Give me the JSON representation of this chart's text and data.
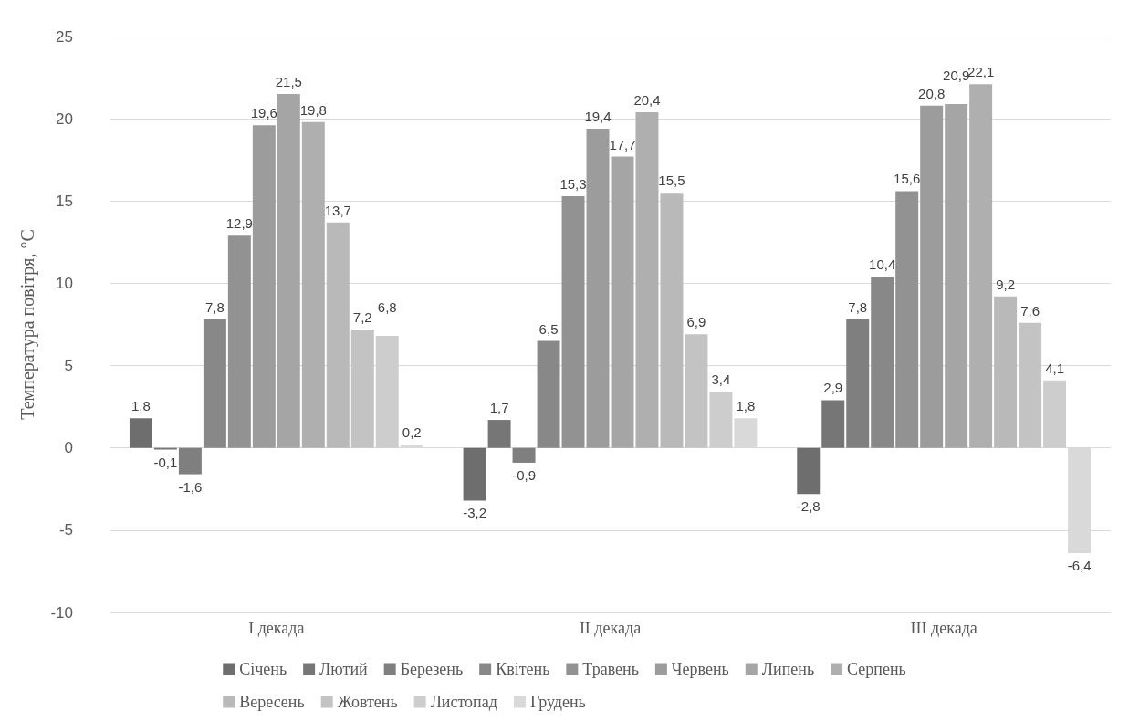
{
  "chart_data": {
    "type": "bar",
    "ylabel": "Температура повітря, °C",
    "categories": [
      "I декада",
      "II декада",
      "III декада"
    ],
    "series": [
      {
        "name": "Січень",
        "color": "#6e6e6e",
        "values": [
          1.8,
          -3.2,
          -2.8
        ],
        "value_labels": [
          "1,8",
          "-3,2",
          "-2,8"
        ]
      },
      {
        "name": "Лютий",
        "color": "#767676",
        "values": [
          -0.1,
          1.7,
          2.9
        ],
        "value_labels": [
          "-0,1",
          "1,7",
          "2,9"
        ]
      },
      {
        "name": "Березень",
        "color": "#7f7f7f",
        "values": [
          -1.6,
          -0.9,
          7.8
        ],
        "value_labels": [
          "-1,6",
          "-0,9",
          "7,8"
        ]
      },
      {
        "name": "Квітень",
        "color": "#888888",
        "values": [
          7.8,
          6.5,
          10.4
        ],
        "value_labels": [
          "7,8",
          "6,5",
          "10,4"
        ]
      },
      {
        "name": "Травень",
        "color": "#929292",
        "values": [
          12.9,
          15.3,
          15.6
        ],
        "value_labels": [
          "12,9",
          "15,3",
          "15,6"
        ]
      },
      {
        "name": "Червень",
        "color": "#9c9c9c",
        "values": [
          19.6,
          19.4,
          20.8
        ],
        "value_labels": [
          "19,6",
          "19,4",
          "20,8"
        ]
      },
      {
        "name": "Липень",
        "color": "#a5a5a5",
        "values": [
          21.5,
          17.7,
          20.9
        ],
        "value_labels": [
          "21,5",
          "17,7",
          "20,9"
        ]
      },
      {
        "name": "Серпень",
        "color": "#afafaf",
        "values": [
          19.8,
          20.4,
          22.1
        ],
        "value_labels": [
          "19,8",
          "20,4",
          "22,1"
        ]
      },
      {
        "name": "Вересень",
        "color": "#b9b9b9",
        "values": [
          13.7,
          15.5,
          9.2
        ],
        "value_labels": [
          "13,7",
          "15,5",
          "9,2"
        ]
      },
      {
        "name": "Жовтень",
        "color": "#c3c3c3",
        "values": [
          7.2,
          6.9,
          7.6
        ],
        "value_labels": [
          "7,2",
          "6,9",
          "7,6"
        ]
      },
      {
        "name": "Листопад",
        "color": "#cdcdcd",
        "values": [
          6.8,
          3.4,
          4.1
        ],
        "value_labels": [
          "6,8",
          "3,4",
          "4,1"
        ]
      },
      {
        "name": "Грудень",
        "color": "#d9d9d9",
        "values": [
          0.2,
          1.8,
          -6.4
        ],
        "value_labels": [
          "0,2",
          "1,8",
          "-6,4"
        ]
      }
    ],
    "ylim": [
      -10,
      25
    ],
    "yticks": [
      -10,
      -5,
      0,
      5,
      10,
      15,
      20,
      25
    ],
    "grid": "y",
    "legend": "bottom"
  }
}
